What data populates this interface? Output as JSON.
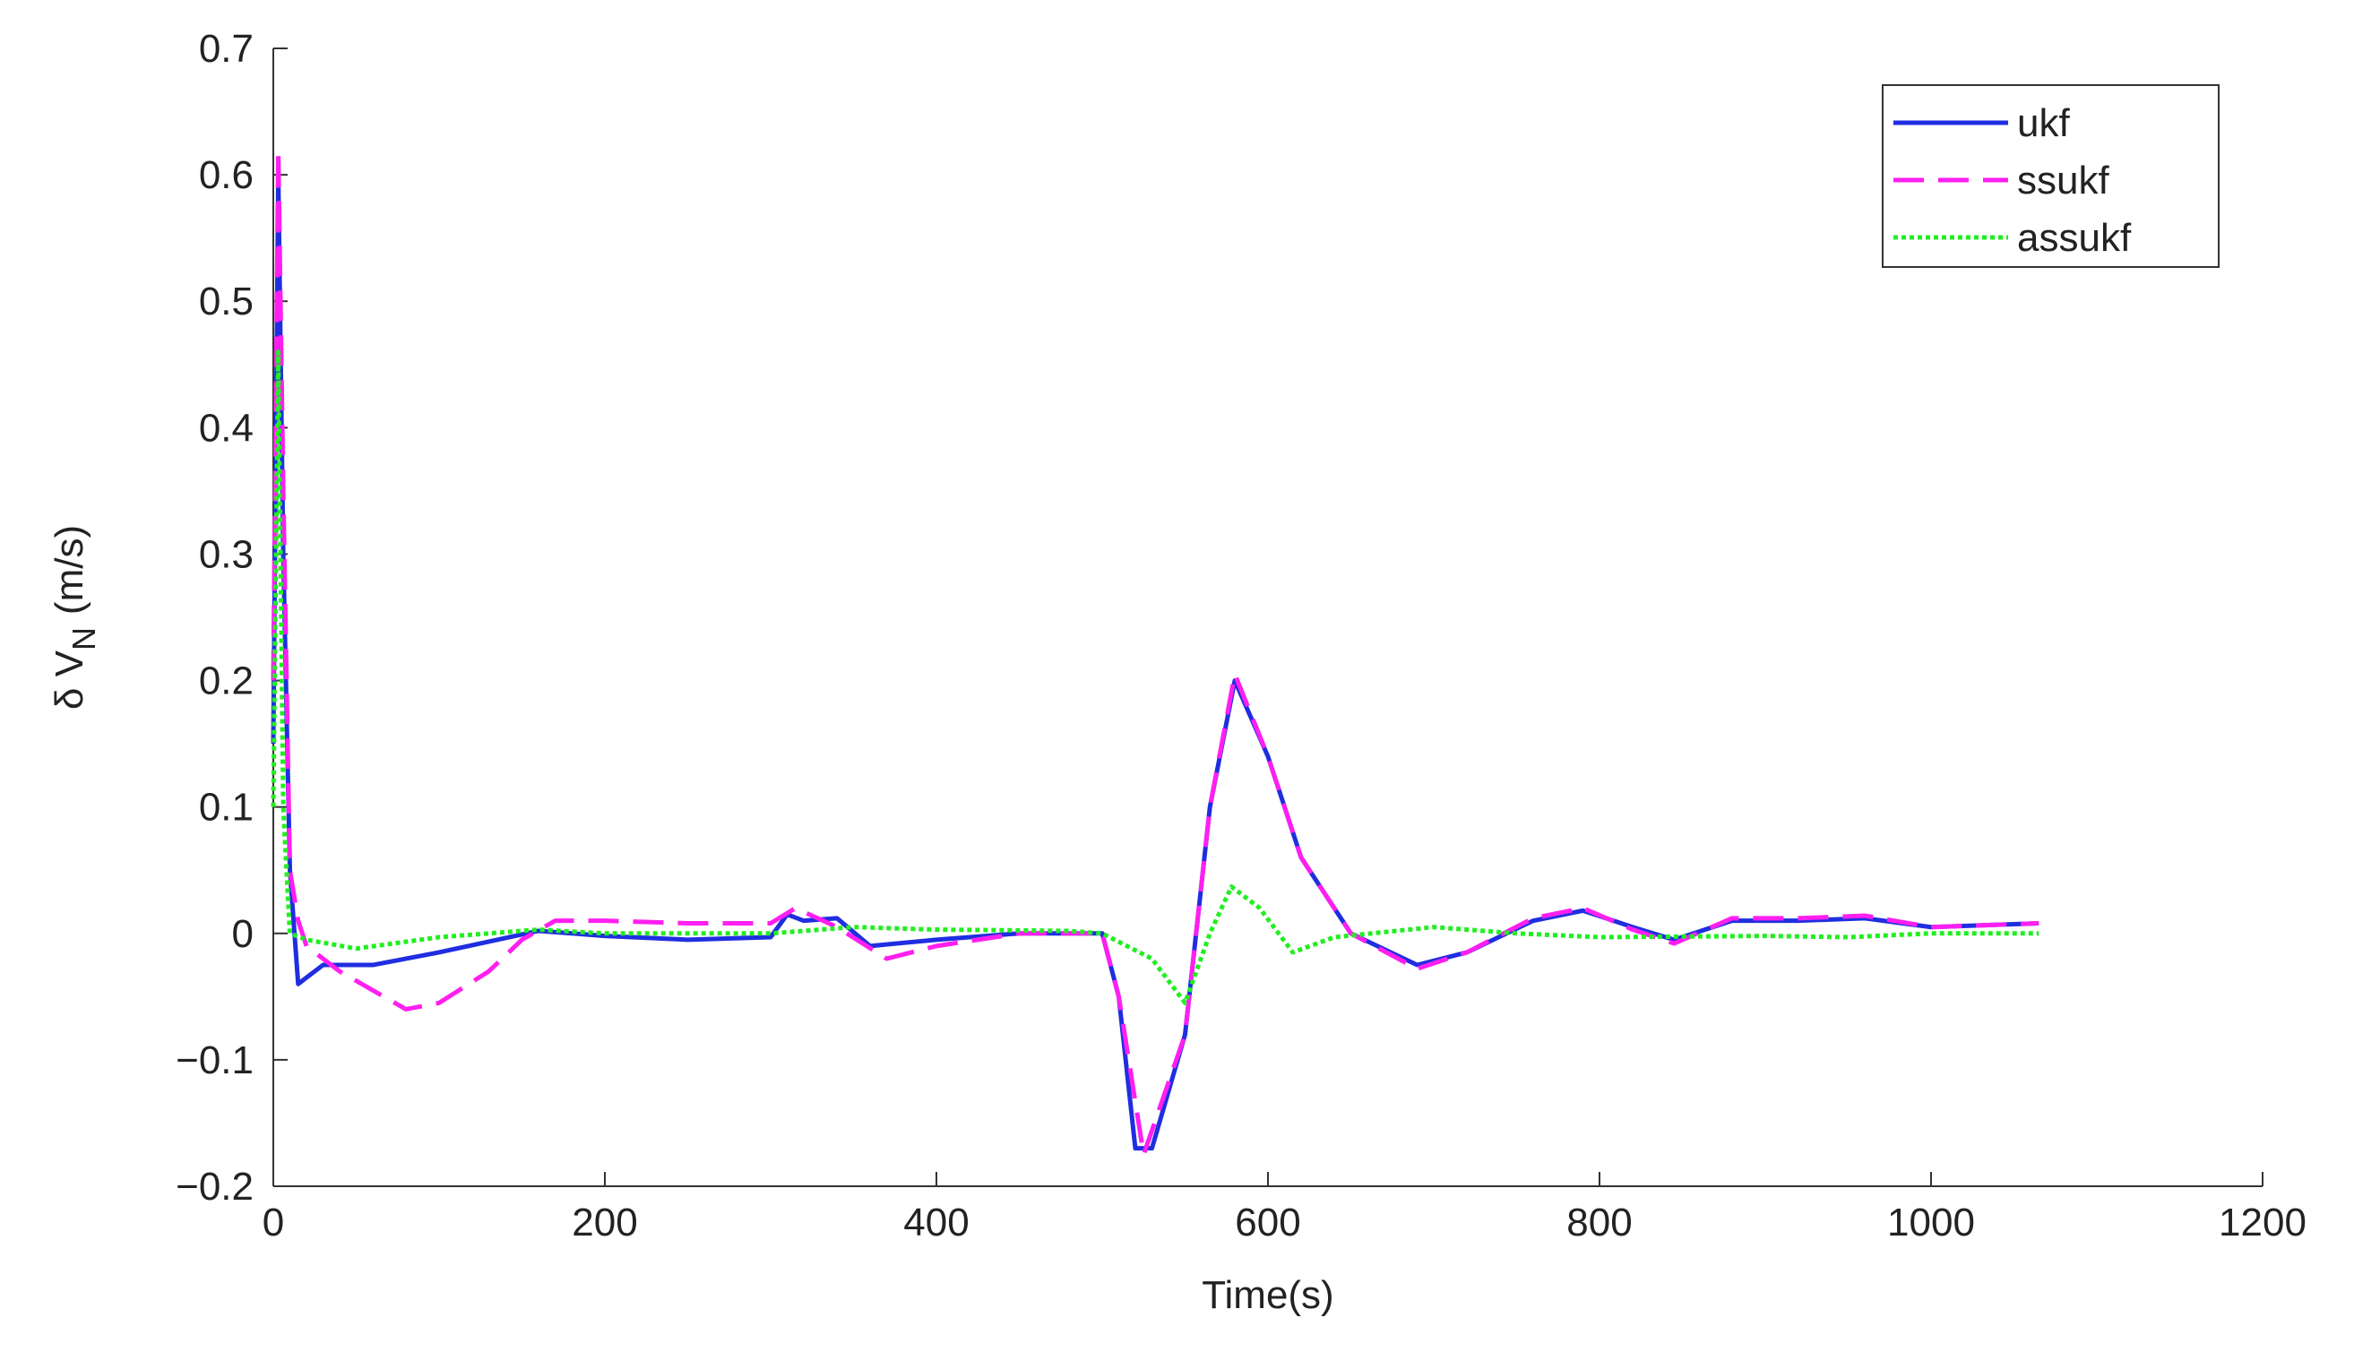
{
  "chart_data": {
    "type": "line",
    "xlabel": "Time(s)",
    "ylabel_parts": [
      "δ V",
      "N",
      "(m/s)"
    ],
    "xlim": [
      0,
      1200
    ],
    "xticks": [
      0,
      200,
      400,
      600,
      800,
      1000,
      1200
    ],
    "ylim": [
      -0.2,
      0.7
    ],
    "yticks": [
      {
        "value": -0.2,
        "label": "−0.2"
      },
      {
        "value": -0.1,
        "label": "−0.1"
      },
      0,
      0.1,
      0.2,
      0.3,
      0.4,
      0.5,
      0.6,
      0.7
    ],
    "legend": "northeast",
    "series": [
      {
        "name": "ukf",
        "color": "#1f2ee0",
        "line_style": "solid",
        "x": [
          0,
          3,
          6,
          10,
          15,
          20,
          30,
          60,
          100,
          160,
          200,
          250,
          300,
          310,
          320,
          340,
          360,
          400,
          450,
          500,
          510,
          520,
          530,
          550,
          565,
          580,
          600,
          620,
          650,
          690,
          720,
          760,
          790,
          820,
          845,
          880,
          920,
          960,
          1000,
          1065
        ],
        "values": [
          0.15,
          0.6,
          0.3,
          0.05,
          -0.04,
          -0.035,
          -0.025,
          -0.025,
          -0.015,
          0.002,
          -0.002,
          -0.005,
          -0.003,
          0.015,
          0.01,
          0.012,
          -0.01,
          -0.005,
          0.0,
          0.0,
          -0.05,
          -0.17,
          -0.17,
          -0.08,
          0.1,
          0.2,
          0.14,
          0.06,
          0.0,
          -0.025,
          -0.015,
          0.01,
          0.018,
          0.005,
          -0.005,
          0.01,
          0.01,
          0.012,
          0.005,
          0.008
        ]
      },
      {
        "name": "ssukf",
        "color": "#ff1ff0",
        "line_style": "dashed",
        "x": [
          0,
          3,
          6,
          10,
          15,
          20,
          40,
          80,
          100,
          130,
          150,
          170,
          200,
          250,
          300,
          315,
          340,
          370,
          400,
          450,
          500,
          510,
          525,
          550,
          565,
          580,
          600,
          620,
          650,
          690,
          720,
          760,
          790,
          820,
          845,
          880,
          920,
          960,
          1000,
          1065
        ],
        "values": [
          0.2,
          0.62,
          0.35,
          0.05,
          0.01,
          -0.01,
          -0.03,
          -0.06,
          -0.055,
          -0.03,
          -0.005,
          0.01,
          0.01,
          0.008,
          0.008,
          0.02,
          0.005,
          -0.02,
          -0.01,
          0.0,
          0.0,
          -0.05,
          -0.175,
          -0.08,
          0.1,
          0.205,
          0.14,
          0.06,
          0.0,
          -0.028,
          -0.015,
          0.012,
          0.02,
          0.003,
          -0.008,
          0.012,
          0.012,
          0.014,
          0.005,
          0.008
        ]
      },
      {
        "name": "assukf",
        "color": "#22ee22",
        "line_style": "dotted",
        "x": [
          0,
          3,
          6,
          10,
          20,
          50,
          100,
          160,
          200,
          300,
          350,
          400,
          480,
          500,
          530,
          550,
          565,
          578,
          595,
          615,
          640,
          700,
          750,
          800,
          900,
          950,
          1000,
          1065
        ],
        "values": [
          0.1,
          0.46,
          0.1,
          0.0,
          -0.005,
          -0.012,
          -0.003,
          0.003,
          0.0,
          0.0,
          0.005,
          0.003,
          0.002,
          0.0,
          -0.02,
          -0.055,
          0.0,
          0.037,
          0.02,
          -0.015,
          -0.003,
          0.005,
          0.0,
          -0.003,
          -0.002,
          -0.003,
          0.0,
          0.0
        ]
      }
    ]
  }
}
